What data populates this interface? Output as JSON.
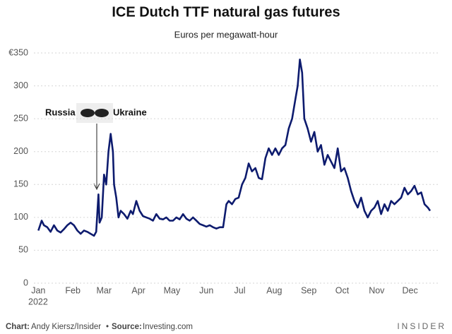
{
  "chart_data": {
    "type": "line",
    "title": "ICE Dutch TTF natural gas futures",
    "subtitle": "Euros per megawatt-hour",
    "year_label": "2022",
    "annotation": {
      "left": "Russia",
      "right": "Ukraine"
    },
    "footer": {
      "chart_label": "Chart:",
      "chart_by": "Andy Kiersz/Insider",
      "separator": "•",
      "source_label": "Source:",
      "source": "Investing.com",
      "brand": "INSIDER"
    },
    "x": [
      1,
      4,
      6,
      9,
      12,
      15,
      18,
      21,
      24,
      27,
      30,
      33,
      36,
      39,
      42,
      45,
      48,
      51,
      53,
      55,
      56,
      58,
      60,
      62,
      64,
      66,
      68,
      69,
      71,
      73,
      75,
      78,
      81,
      84,
      86,
      89,
      92,
      95,
      98,
      101,
      104,
      107,
      110,
      113,
      116,
      119,
      122,
      125,
      128,
      131,
      134,
      137,
      140,
      143,
      146,
      149,
      152,
      155,
      158,
      161,
      164,
      167,
      170,
      172,
      175,
      178,
      181,
      184,
      187,
      190,
      193,
      196,
      199,
      202,
      205,
      208,
      211,
      214,
      217,
      220,
      223,
      226,
      229,
      232,
      234,
      236,
      238,
      240,
      243,
      246,
      249,
      252,
      255,
      258,
      261,
      264,
      267,
      270,
      273,
      276,
      279,
      282,
      285,
      288,
      291,
      294,
      297,
      300,
      303,
      306,
      309,
      312,
      315,
      318,
      321,
      324,
      327,
      330,
      333,
      336,
      339,
      342,
      345,
      348,
      351,
      353
    ],
    "series": [
      {
        "name": "TTF",
        "color": "#0d1b6e",
        "values": [
          80,
          95,
          88,
          85,
          78,
          88,
          80,
          77,
          82,
          88,
          92,
          88,
          80,
          75,
          80,
          78,
          75,
          72,
          78,
          135,
          92,
          100,
          165,
          150,
          200,
          227,
          200,
          150,
          130,
          100,
          110,
          105,
          98,
          110,
          105,
          125,
          110,
          102,
          100,
          98,
          95,
          105,
          98,
          97,
          100,
          95,
          95,
          100,
          97,
          105,
          98,
          95,
          100,
          95,
          90,
          88,
          86,
          88,
          85,
          83,
          85,
          85,
          120,
          125,
          120,
          128,
          130,
          150,
          160,
          182,
          170,
          175,
          160,
          158,
          190,
          205,
          195,
          205,
          195,
          205,
          210,
          235,
          250,
          280,
          300,
          340,
          320,
          250,
          235,
          215,
          230,
          200,
          210,
          180,
          195,
          185,
          175,
          205,
          170,
          175,
          160,
          140,
          125,
          115,
          130,
          110,
          100,
          110,
          115,
          125,
          105,
          120,
          110,
          125,
          120,
          125,
          130,
          145,
          135,
          140,
          148,
          135,
          138,
          120,
          115,
          110
        ]
      }
    ],
    "xlim": [
      -3,
      360
    ],
    "xticks": [
      {
        "value": 1,
        "label": "Jan"
      },
      {
        "value": 32,
        "label": "Feb"
      },
      {
        "value": 60,
        "label": "Mar"
      },
      {
        "value": 91,
        "label": "Apr"
      },
      {
        "value": 121,
        "label": "May"
      },
      {
        "value": 152,
        "label": "Jun"
      },
      {
        "value": 182,
        "label": "Jul"
      },
      {
        "value": 213,
        "label": "Aug"
      },
      {
        "value": 244,
        "label": "Sep"
      },
      {
        "value": 274,
        "label": "Oct"
      },
      {
        "value": 305,
        "label": "Nov"
      },
      {
        "value": 335,
        "label": "Dec"
      }
    ],
    "ylim": [
      0,
      350
    ],
    "yticks": [
      0,
      50,
      100,
      150,
      200,
      250,
      300,
      {
        "value": 350,
        "label": "€350"
      }
    ],
    "grid": true
  }
}
